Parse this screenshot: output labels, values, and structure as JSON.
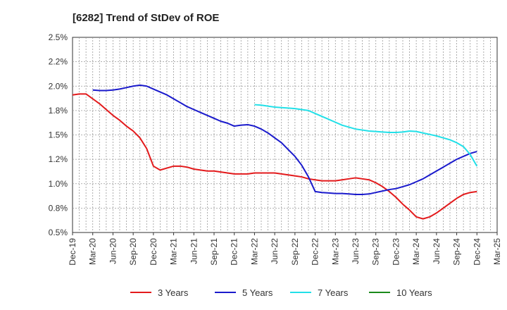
{
  "chart_data": {
    "type": "line",
    "title": "[6282]  Trend of StDev of ROE",
    "xlabel": "",
    "ylabel": "",
    "x_ticks": [
      "Dec-19",
      "Mar-20",
      "Jun-20",
      "Sep-20",
      "Dec-20",
      "Mar-21",
      "Jun-21",
      "Sep-21",
      "Dec-21",
      "Mar-22",
      "Jun-22",
      "Sep-22",
      "Dec-22",
      "Mar-23",
      "Jun-23",
      "Sep-23",
      "Dec-23",
      "Mar-24",
      "Jun-24",
      "Sep-24",
      "Dec-24",
      "Mar-25"
    ],
    "y_ticks": [
      "0.5%",
      "0.8%",
      "1.0%",
      "1.2%",
      "1.5%",
      "1.8%",
      "2.0%",
      "2.2%",
      "2.5%"
    ],
    "ylim": [
      0.5,
      2.5
    ],
    "grid": true,
    "legend_position": "bottom",
    "series": [
      {
        "name": "3 Years",
        "color": "#e31a1c",
        "points": [
          [
            "Dec-19",
            1.91
          ],
          [
            "Jan-20",
            1.92
          ],
          [
            "Feb-20",
            1.92
          ],
          [
            "Mar-20",
            1.87
          ],
          [
            "Apr-20",
            1.82
          ],
          [
            "May-20",
            1.76
          ],
          [
            "Jun-20",
            1.7
          ],
          [
            "Jul-20",
            1.65
          ],
          [
            "Aug-20",
            1.59
          ],
          [
            "Sep-20",
            1.54
          ],
          [
            "Oct-20",
            1.47
          ],
          [
            "Nov-20",
            1.36
          ],
          [
            "Dec-20",
            1.18
          ],
          [
            "Jan-21",
            1.14
          ],
          [
            "Feb-21",
            1.16
          ],
          [
            "Mar-21",
            1.18
          ],
          [
            "Apr-21",
            1.18
          ],
          [
            "May-21",
            1.17
          ],
          [
            "Jun-21",
            1.15
          ],
          [
            "Jul-21",
            1.14
          ],
          [
            "Aug-21",
            1.13
          ],
          [
            "Sep-21",
            1.13
          ],
          [
            "Oct-21",
            1.12
          ],
          [
            "Nov-21",
            1.11
          ],
          [
            "Dec-21",
            1.1
          ],
          [
            "Jan-22",
            1.1
          ],
          [
            "Feb-22",
            1.1
          ],
          [
            "Mar-22",
            1.11
          ],
          [
            "Apr-22",
            1.11
          ],
          [
            "May-22",
            1.11
          ],
          [
            "Jun-22",
            1.11
          ],
          [
            "Jul-22",
            1.1
          ],
          [
            "Aug-22",
            1.09
          ],
          [
            "Sep-22",
            1.08
          ],
          [
            "Oct-22",
            1.07
          ],
          [
            "Nov-22",
            1.05
          ],
          [
            "Dec-22",
            1.04
          ],
          [
            "Jan-23",
            1.03
          ],
          [
            "Feb-23",
            1.03
          ],
          [
            "Mar-23",
            1.03
          ],
          [
            "Apr-23",
            1.04
          ],
          [
            "May-23",
            1.05
          ],
          [
            "Jun-23",
            1.06
          ],
          [
            "Jul-23",
            1.05
          ],
          [
            "Aug-23",
            1.04
          ],
          [
            "Sep-23",
            1.01
          ],
          [
            "Oct-23",
            0.97
          ],
          [
            "Nov-23",
            0.92
          ],
          [
            "Dec-23",
            0.86
          ],
          [
            "Jan-24",
            0.79
          ],
          [
            "Feb-24",
            0.73
          ],
          [
            "Mar-24",
            0.66
          ],
          [
            "Apr-24",
            0.64
          ],
          [
            "May-24",
            0.66
          ],
          [
            "Jun-24",
            0.7
          ],
          [
            "Jul-24",
            0.75
          ],
          [
            "Aug-24",
            0.8
          ],
          [
            "Sep-24",
            0.85
          ],
          [
            "Oct-24",
            0.89
          ],
          [
            "Nov-24",
            0.91
          ],
          [
            "Dec-24",
            0.92
          ]
        ]
      },
      {
        "name": "5 Years",
        "color": "#1a1acc",
        "points": [
          [
            "Mar-20",
            1.96
          ],
          [
            "Apr-20",
            1.955
          ],
          [
            "May-20",
            1.955
          ],
          [
            "Jun-20",
            1.96
          ],
          [
            "Jul-20",
            1.97
          ],
          [
            "Aug-20",
            1.985
          ],
          [
            "Sep-20",
            2.0
          ],
          [
            "Oct-20",
            2.01
          ],
          [
            "Nov-20",
            2.0
          ],
          [
            "Dec-20",
            1.97
          ],
          [
            "Jan-21",
            1.94
          ],
          [
            "Feb-21",
            1.91
          ],
          [
            "Mar-21",
            1.87
          ],
          [
            "Apr-21",
            1.83
          ],
          [
            "May-21",
            1.79
          ],
          [
            "Jun-21",
            1.76
          ],
          [
            "Jul-21",
            1.73
          ],
          [
            "Aug-21",
            1.7
          ],
          [
            "Sep-21",
            1.67
          ],
          [
            "Oct-21",
            1.64
          ],
          [
            "Nov-21",
            1.62
          ],
          [
            "Dec-21",
            1.59
          ],
          [
            "Jan-22",
            1.6
          ],
          [
            "Feb-22",
            1.605
          ],
          [
            "Mar-22",
            1.59
          ],
          [
            "Apr-22",
            1.56
          ],
          [
            "May-22",
            1.52
          ],
          [
            "Jun-22",
            1.47
          ],
          [
            "Jul-22",
            1.42
          ],
          [
            "Aug-22",
            1.35
          ],
          [
            "Sep-22",
            1.28
          ],
          [
            "Oct-22",
            1.19
          ],
          [
            "Nov-22",
            1.07
          ],
          [
            "Dec-22",
            0.92
          ],
          [
            "Jan-23",
            0.91
          ],
          [
            "Feb-23",
            0.905
          ],
          [
            "Mar-23",
            0.9
          ],
          [
            "Apr-23",
            0.9
          ],
          [
            "May-23",
            0.895
          ],
          [
            "Jun-23",
            0.89
          ],
          [
            "Jul-23",
            0.89
          ],
          [
            "Aug-23",
            0.895
          ],
          [
            "Sep-23",
            0.91
          ],
          [
            "Oct-23",
            0.925
          ],
          [
            "Nov-23",
            0.94
          ],
          [
            "Dec-23",
            0.95
          ],
          [
            "Jan-24",
            0.97
          ],
          [
            "Feb-24",
            0.99
          ],
          [
            "Mar-24",
            1.02
          ],
          [
            "Apr-24",
            1.05
          ],
          [
            "May-24",
            1.09
          ],
          [
            "Jun-24",
            1.13
          ],
          [
            "Jul-24",
            1.17
          ],
          [
            "Aug-24",
            1.21
          ],
          [
            "Sep-24",
            1.25
          ],
          [
            "Oct-24",
            1.28
          ],
          [
            "Nov-24",
            1.31
          ],
          [
            "Dec-24",
            1.33
          ]
        ]
      },
      {
        "name": "7 Years",
        "color": "#22e0e8",
        "points": [
          [
            "Mar-22",
            1.81
          ],
          [
            "Apr-22",
            1.805
          ],
          [
            "May-22",
            1.795
          ],
          [
            "Jun-22",
            1.785
          ],
          [
            "Jul-22",
            1.78
          ],
          [
            "Aug-22",
            1.775
          ],
          [
            "Sep-22",
            1.77
          ],
          [
            "Oct-22",
            1.76
          ],
          [
            "Nov-22",
            1.75
          ],
          [
            "Dec-22",
            1.72
          ],
          [
            "Jan-23",
            1.69
          ],
          [
            "Feb-23",
            1.66
          ],
          [
            "Mar-23",
            1.63
          ],
          [
            "Apr-23",
            1.6
          ],
          [
            "May-23",
            1.58
          ],
          [
            "Jun-23",
            1.56
          ],
          [
            "Jul-23",
            1.55
          ],
          [
            "Aug-23",
            1.54
          ],
          [
            "Sep-23",
            1.535
          ],
          [
            "Oct-23",
            1.53
          ],
          [
            "Nov-23",
            1.525
          ],
          [
            "Dec-23",
            1.525
          ],
          [
            "Jan-24",
            1.53
          ],
          [
            "Feb-24",
            1.54
          ],
          [
            "Mar-24",
            1.535
          ],
          [
            "Apr-24",
            1.52
          ],
          [
            "May-24",
            1.505
          ],
          [
            "Jun-24",
            1.49
          ],
          [
            "Jul-24",
            1.47
          ],
          [
            "Aug-24",
            1.45
          ],
          [
            "Sep-24",
            1.42
          ],
          [
            "Oct-24",
            1.38
          ],
          [
            "Nov-24",
            1.3
          ],
          [
            "Dec-24",
            1.18
          ]
        ]
      },
      {
        "name": "10 Years",
        "color": "#1a8a1a",
        "points": []
      }
    ]
  }
}
